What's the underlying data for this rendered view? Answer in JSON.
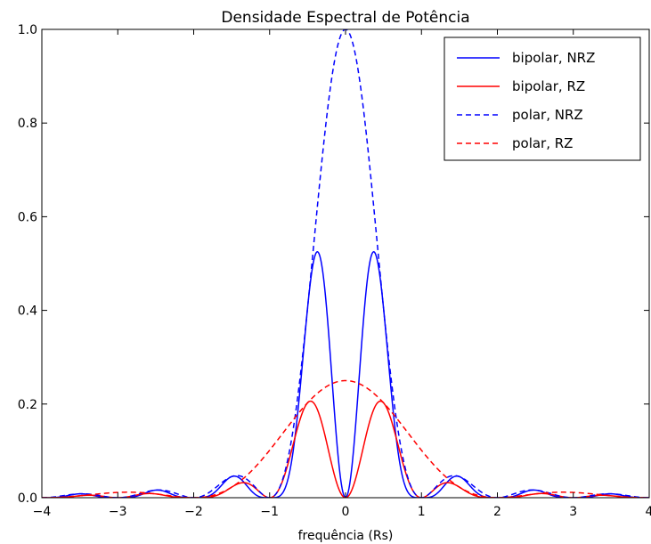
{
  "chart_data": {
    "type": "line",
    "title": "Densidade Espectral de Potência",
    "xlabel": "frequência (Rs)",
    "ylabel": "",
    "xlim": [
      -4,
      4
    ],
    "ylim": [
      0,
      1.0
    ],
    "xticks": [
      -4,
      -3,
      -2,
      -1,
      0,
      1,
      2,
      3,
      4
    ],
    "xtick_labels": [
      "−4",
      "−3",
      "−2",
      "−1",
      "0",
      "1",
      "2",
      "3",
      "4"
    ],
    "yticks": [
      0,
      0.2,
      0.4,
      0.6,
      0.8,
      1.0
    ],
    "ytick_labels": [
      "0.0",
      "0.2",
      "0.4",
      "0.6",
      "0.8",
      "1.0"
    ],
    "grid": false,
    "legend_position": "top-right",
    "series": [
      {
        "name": "bipolar, NRZ",
        "color": "#0000ff",
        "dash": "solid",
        "formula": "sinc(f)^2 * sin(pi*f)^2"
      },
      {
        "name": "bipolar, RZ",
        "color": "#ff0000",
        "dash": "solid",
        "formula": "0.25 * sinc(f/2)^2 * sin(pi*f)^2"
      },
      {
        "name": "polar, NRZ",
        "color": "#0000ff",
        "dash": "dashed",
        "formula": "sinc(f)^2"
      },
      {
        "name": "polar, RZ",
        "color": "#ff0000",
        "dash": "dashed",
        "formula": "0.25 * sinc(f/2)^2"
      }
    ]
  }
}
